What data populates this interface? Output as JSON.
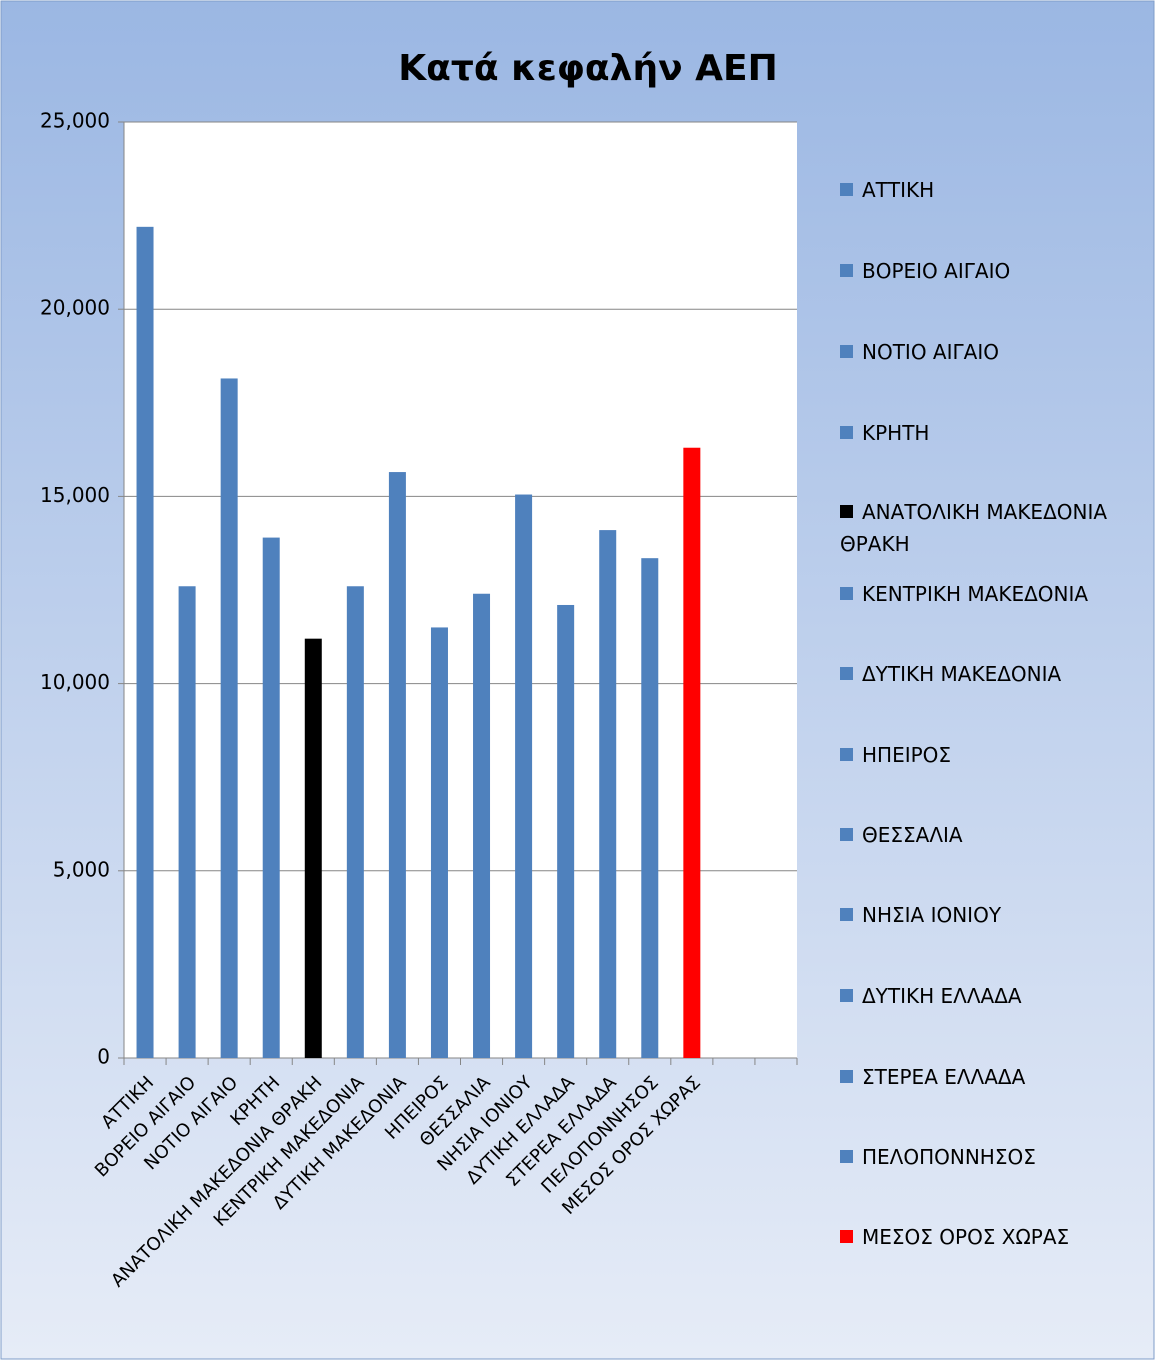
{
  "chart_data": {
    "type": "bar",
    "title": "Κατά κεφαλήν ΑΕΠ",
    "categories": [
      "ΑΤΤΙΚΗ",
      "ΒΟΡΕΙΟ ΑΙΓΑΙΟ",
      "ΝΟΤΙΟ ΑΙΓΑΙΟ",
      "ΚΡΗΤΗ",
      "ΑΝΑΤΟΛΙΚΗ ΜΑΚΕΔΟΝΙΑ ΘΡΑΚΗ",
      "ΚΕΝΤΡΙΚΗ ΜΑΚΕΔΟΝΙΑ",
      "ΔΥΤΙΚΗ ΜΑΚΕΔΟΝΙΑ",
      "ΗΠΕΙΡΟΣ",
      "ΘΕΣΣΑΛΙΑ",
      "ΝΗΣΙΑ ΙΟΝΙΟΥ",
      "ΔΥΤΙΚΗ ΕΛΛΑΔΑ",
      "ΣΤΕΡΕΑ ΕΛΛΑΔΑ",
      "ΠΕΛΟΠΟΝΝΗΣΟΣ",
      "ΜΕΣΟΣ ΟΡΟΣ ΧΩΡΑΣ",
      null,
      null
    ],
    "values": [
      22200,
      12600,
      18150,
      13900,
      11200,
      12600,
      15650,
      11500,
      12400,
      15050,
      12100,
      14100,
      13350,
      16300,
      null,
      null
    ],
    "colors": [
      "#4f81bd",
      "#4f81bd",
      "#4f81bd",
      "#4f81bd",
      "#000000",
      "#4f81bd",
      "#4f81bd",
      "#4f81bd",
      "#4f81bd",
      "#4f81bd",
      "#4f81bd",
      "#4f81bd",
      "#4f81bd",
      "#ff0000",
      null,
      null
    ],
    "ylim": [
      0,
      25000
    ],
    "yticks": [
      0,
      {
        "value": 5000,
        "label": "5,000"
      },
      {
        "value": 10000,
        "label": "10,000"
      },
      {
        "value": 15000,
        "label": "15,000"
      },
      {
        "value": 20000,
        "label": "20,000"
      },
      {
        "value": 25000,
        "label": "25,000"
      }
    ],
    "grid": true,
    "legend": "right"
  }
}
